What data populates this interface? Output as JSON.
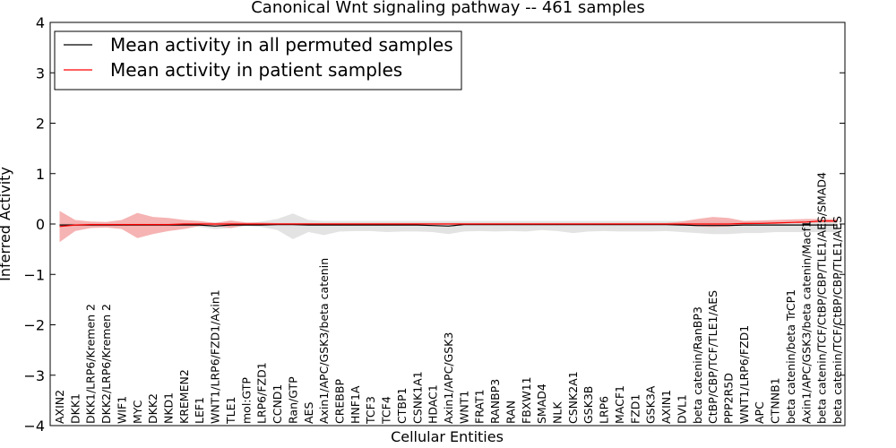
{
  "chart_data": {
    "type": "line",
    "title": "Canonical Wnt signaling pathway -- 461 samples",
    "xlabel": "Cellular Entities",
    "ylabel": "Inferred Activity",
    "ylim": [
      -4,
      4
    ],
    "yticks": [
      -4,
      -3,
      -2,
      -1,
      0,
      1,
      2,
      3,
      4
    ],
    "ytick_labels": [
      "−4",
      "−3",
      "−2",
      "−1",
      "0",
      "1",
      "2",
      "3",
      "4"
    ],
    "grid": false,
    "legend_position": "top-left",
    "categories": [
      "AXIN2",
      "DKK1",
      "DKK1/LRP6/Kremen 2",
      "DKK2/LRP6/Kremen 2",
      "WIF1",
      "MYC",
      "DKK2",
      "NKD1",
      "KREMEN2",
      "LEF1",
      "WNT1/LRP6/FZD1/Axin1",
      "TLE1",
      "mol:GTP",
      "LRP6/FZD1",
      "CCND1",
      "Ran/GTP",
      "AES",
      "Axin1/APC/GSK3/beta catenin",
      "CREBBP",
      "HNF1A",
      "TCF3",
      "TCF4",
      "CTBP1",
      "CSNK1A1",
      "HDAC1",
      "Axin1/APC/GSK3",
      "WNT1",
      "FRAT1",
      "RANBP3",
      "RAN",
      "FBXW11",
      "SMAD4",
      "NLK",
      "CSNK2A1",
      "GSK3B",
      "LRP6",
      "MACF1",
      "FZD1",
      "GSK3A",
      "AXIN1",
      "DVL1",
      "beta catenin/RanBP3",
      "CtBP/CBP/TCF/TLE1/AES",
      "PPP2R5D",
      "WNT1/LRP6/FZD1",
      "APC",
      "CTNNB1",
      "beta catenin/beta TrCP1",
      "Axin1/APC/GSK3/beta catenin/Macf1",
      "beta catenin/TCF/CtBP/CBP/TLE1/AES/SMAD4",
      "beta catenin/TCF/CtBP/CBP/TLE1/AES"
    ],
    "series": [
      {
        "name": "Mean activity in all permuted samples",
        "color": "#000000",
        "band_color": "#c8c8c8",
        "values": [
          -0.02,
          -0.02,
          -0.02,
          -0.02,
          -0.02,
          -0.02,
          -0.02,
          -0.02,
          -0.02,
          -0.02,
          -0.04,
          -0.02,
          -0.02,
          -0.02,
          -0.01,
          -0.01,
          -0.02,
          -0.02,
          -0.02,
          -0.02,
          -0.02,
          -0.02,
          -0.02,
          -0.02,
          -0.03,
          -0.04,
          -0.01,
          -0.01,
          -0.01,
          -0.01,
          -0.01,
          -0.01,
          -0.01,
          -0.01,
          -0.01,
          -0.01,
          -0.01,
          -0.01,
          -0.01,
          -0.01,
          -0.02,
          -0.03,
          -0.03,
          -0.03,
          -0.02,
          -0.02,
          -0.02,
          -0.02,
          -0.02,
          -0.02,
          -0.02
        ],
        "band_upper": [
          0.02,
          0.02,
          0.02,
          0.02,
          0.02,
          0.02,
          0.02,
          0.02,
          0.02,
          0.03,
          0.03,
          0.05,
          0.02,
          0.05,
          0.1,
          0.21,
          0.08,
          0.06,
          0.06,
          0.06,
          0.06,
          0.06,
          0.06,
          0.06,
          0.06,
          0.06,
          0.06,
          0.06,
          0.06,
          0.06,
          0.06,
          0.06,
          0.06,
          0.06,
          0.06,
          0.06,
          0.06,
          0.06,
          0.06,
          0.06,
          0.06,
          0.06,
          0.06,
          0.06,
          0.06,
          0.06,
          0.06,
          0.06,
          0.06,
          0.06,
          0.06
        ],
        "band_lower": [
          -0.05,
          -0.05,
          -0.05,
          -0.05,
          -0.05,
          -0.05,
          -0.05,
          -0.05,
          -0.05,
          -0.06,
          -0.1,
          -0.08,
          -0.04,
          -0.06,
          -0.12,
          -0.3,
          -0.16,
          -0.22,
          -0.15,
          -0.14,
          -0.14,
          -0.16,
          -0.15,
          -0.15,
          -0.16,
          -0.2,
          -0.15,
          -0.14,
          -0.15,
          -0.14,
          -0.15,
          -0.12,
          -0.14,
          -0.18,
          -0.15,
          -0.14,
          -0.15,
          -0.15,
          -0.15,
          -0.14,
          -0.16,
          -0.18,
          -0.2,
          -0.2,
          -0.18,
          -0.18,
          -0.16,
          -0.16,
          -0.16,
          -0.16,
          -0.16
        ]
      },
      {
        "name": "Mean activity in patient samples",
        "color": "#ff0000",
        "band_color": "#f4a0a0",
        "values": [
          -0.05,
          -0.02,
          -0.01,
          -0.01,
          -0.01,
          -0.01,
          -0.01,
          -0.01,
          0.0,
          0.0,
          0.0,
          0.0,
          0.0,
          0.0,
          0.0,
          0.0,
          0.0,
          0.0,
          0.0,
          0.0,
          0.0,
          0.0,
          0.0,
          0.0,
          0.0,
          0.0,
          0.0,
          0.0,
          0.0,
          0.0,
          0.0,
          0.0,
          0.0,
          0.0,
          0.0,
          0.0,
          0.0,
          0.0,
          0.0,
          0.0,
          0.0,
          0.0,
          0.0,
          0.0,
          0.01,
          0.01,
          0.02,
          0.03,
          0.04,
          0.06,
          0.06
        ],
        "band_upper": [
          0.26,
          0.08,
          0.05,
          0.04,
          0.08,
          0.22,
          0.14,
          0.12,
          0.08,
          0.06,
          0.02,
          0.07,
          0.03,
          0.03,
          0.02,
          0.02,
          0.02,
          0.02,
          0.02,
          0.02,
          0.02,
          0.02,
          0.02,
          0.02,
          0.02,
          0.02,
          0.02,
          0.02,
          0.02,
          0.02,
          0.02,
          0.02,
          0.02,
          0.02,
          0.02,
          0.02,
          0.02,
          0.02,
          0.02,
          0.02,
          0.05,
          0.1,
          0.14,
          0.12,
          0.06,
          0.07,
          0.08,
          0.09,
          0.1,
          0.1,
          0.1
        ],
        "band_lower": [
          -0.36,
          -0.14,
          -0.08,
          -0.07,
          -0.1,
          -0.28,
          -0.2,
          -0.14,
          -0.1,
          -0.04,
          -0.03,
          -0.08,
          -0.02,
          -0.02,
          -0.01,
          -0.01,
          -0.01,
          -0.01,
          -0.01,
          -0.01,
          -0.01,
          -0.01,
          -0.01,
          -0.01,
          -0.01,
          -0.01,
          -0.01,
          -0.01,
          -0.01,
          -0.01,
          -0.01,
          -0.01,
          -0.01,
          -0.01,
          -0.01,
          -0.01,
          -0.01,
          -0.01,
          -0.01,
          -0.01,
          -0.02,
          -0.05,
          -0.06,
          -0.05,
          -0.01,
          0.0,
          0.0,
          0.01,
          0.02,
          0.03,
          0.03
        ]
      }
    ]
  }
}
